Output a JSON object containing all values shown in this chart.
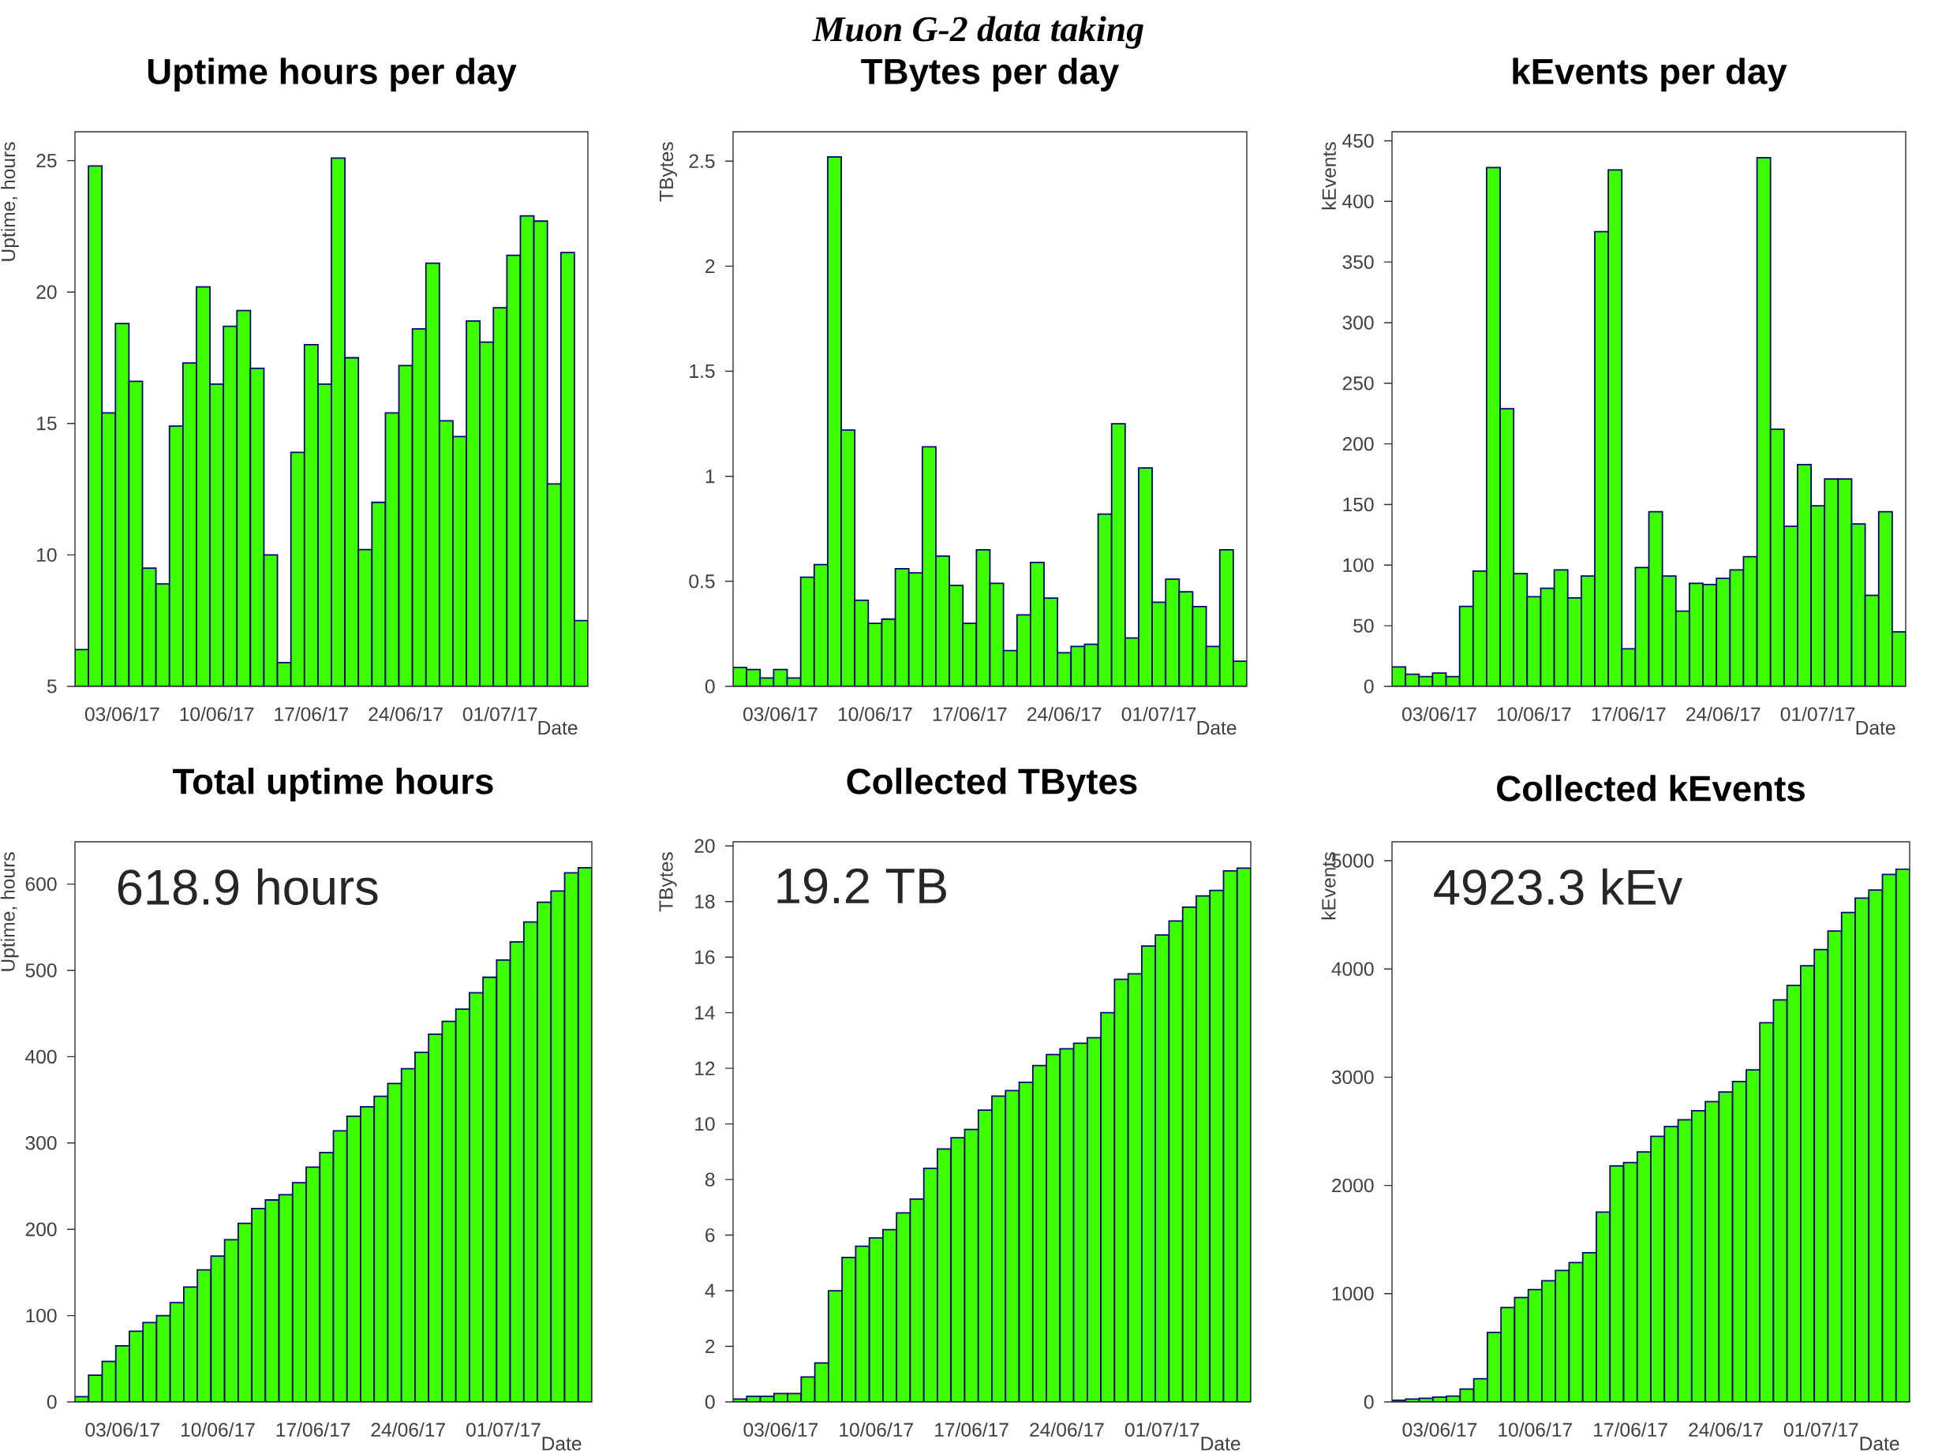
{
  "chart_data": [
    {
      "type": "other",
      "title": "Muon G-2 data taking"
    },
    {
      "type": "bar",
      "title": "Uptime hours per day",
      "xlabel": "Date",
      "ylabel": "Uptime, hours",
      "color": "#3cff00",
      "categories": [
        null,
        null,
        null,
        "03/06/17",
        null,
        null,
        null,
        null,
        null,
        null,
        "10/06/17",
        null,
        null,
        null,
        null,
        null,
        null,
        "17/06/17",
        null,
        null,
        null,
        null,
        null,
        null,
        "24/06/17",
        null,
        null,
        null,
        null,
        null,
        null,
        "01/07/17",
        null,
        null,
        null,
        null,
        null,
        null
      ],
      "values": [
        6.4,
        24.8,
        15.4,
        18.8,
        16.6,
        9.5,
        8.9,
        14.9,
        17.3,
        20.2,
        16.5,
        18.7,
        19.3,
        17.1,
        10.0,
        5.9,
        13.9,
        18.0,
        16.5,
        25.1,
        17.5,
        10.2,
        12.0,
        15.4,
        17.2,
        18.6,
        21.1,
        15.1,
        14.5,
        18.9,
        18.1,
        19.4,
        21.4,
        22.9,
        22.7,
        12.7,
        21.5,
        7.5
      ],
      "ylim": [
        5,
        26.1
      ],
      "yticks": [
        5,
        10,
        15,
        20,
        25
      ]
    },
    {
      "type": "bar",
      "title": "TBytes per day",
      "xlabel": "Date",
      "ylabel": "TBytes",
      "color": "#3cff00",
      "categories": [
        null,
        null,
        null,
        "03/06/17",
        null,
        null,
        null,
        null,
        null,
        null,
        "10/06/17",
        null,
        null,
        null,
        null,
        null,
        null,
        "17/06/17",
        null,
        null,
        null,
        null,
        null,
        null,
        "24/06/17",
        null,
        null,
        null,
        null,
        null,
        null,
        "01/07/17",
        null,
        null,
        null,
        null,
        null,
        null
      ],
      "values": [
        0.09,
        0.08,
        0.04,
        0.08,
        0.04,
        0.52,
        0.58,
        2.52,
        1.22,
        0.41,
        0.3,
        0.32,
        0.56,
        0.54,
        1.14,
        0.62,
        0.48,
        0.3,
        0.65,
        0.49,
        0.17,
        0.34,
        0.59,
        0.42,
        0.16,
        0.19,
        0.2,
        0.82,
        1.25,
        0.23,
        1.04,
        0.4,
        0.51,
        0.45,
        0.38,
        0.19,
        0.65,
        0.12
      ],
      "ylim": [
        0,
        2.64
      ],
      "yticks": [
        0,
        0.5,
        1,
        1.5,
        2,
        2.5
      ]
    },
    {
      "type": "bar",
      "title": "kEvents per day",
      "xlabel": "Date",
      "ylabel": "kEvents",
      "color": "#3cff00",
      "categories": [
        null,
        null,
        null,
        "03/06/17",
        null,
        null,
        null,
        null,
        null,
        null,
        "10/06/17",
        null,
        null,
        null,
        null,
        null,
        null,
        "17/06/17",
        null,
        null,
        null,
        null,
        null,
        null,
        "24/06/17",
        null,
        null,
        null,
        null,
        null,
        null,
        "01/07/17",
        null,
        null,
        null,
        null,
        null,
        null
      ],
      "values": [
        16,
        10,
        8,
        11,
        8,
        66,
        95,
        428,
        229,
        93,
        74,
        81,
        96,
        73,
        91,
        375,
        426,
        31,
        98,
        144,
        91,
        62,
        85,
        84,
        89,
        96,
        107,
        436,
        212,
        132,
        183,
        149,
        171,
        171,
        134,
        75,
        144,
        45
      ],
      "ylim": [
        0,
        457.5
      ],
      "yticks": [
        0,
        50,
        100,
        150,
        200,
        250,
        300,
        350,
        400,
        450
      ]
    },
    {
      "type": "bar",
      "title": "Total uptime hours",
      "xlabel": "Date",
      "ylabel": "Uptime, hours",
      "color": "#3cff00",
      "annotations": [
        "618.9 hours"
      ],
      "categories": [
        null,
        null,
        null,
        "03/06/17",
        null,
        null,
        null,
        null,
        null,
        null,
        "10/06/17",
        null,
        null,
        null,
        null,
        null,
        null,
        "17/06/17",
        null,
        null,
        null,
        null,
        null,
        null,
        "24/06/17",
        null,
        null,
        null,
        null,
        null,
        null,
        "01/07/17",
        null,
        null,
        null,
        null,
        null,
        null
      ],
      "values": [
        6,
        31,
        47,
        65,
        82,
        92,
        100,
        115,
        133,
        153,
        169,
        188,
        207,
        224,
        234,
        240,
        254,
        272,
        289,
        314,
        331,
        342,
        354,
        369,
        386,
        405,
        426,
        441,
        455,
        474,
        492,
        512,
        533,
        556,
        579,
        592,
        613,
        619
      ],
      "ylim": [
        0,
        649
      ],
      "yticks": [
        0,
        100,
        200,
        300,
        400,
        500,
        600
      ]
    },
    {
      "type": "bar",
      "title": "Collected TBytes",
      "xlabel": "Date",
      "ylabel": "TBytes",
      "color": "#3cff00",
      "annotations": [
        "19.2 TB"
      ],
      "categories": [
        null,
        null,
        null,
        "03/06/17",
        null,
        null,
        null,
        null,
        null,
        null,
        "10/06/17",
        null,
        null,
        null,
        null,
        null,
        null,
        "17/06/17",
        null,
        null,
        null,
        null,
        null,
        null,
        "24/06/17",
        null,
        null,
        null,
        null,
        null,
        null,
        "01/07/17",
        null,
        null,
        null,
        null,
        null,
        null
      ],
      "values": [
        0.1,
        0.2,
        0.2,
        0.3,
        0.3,
        0.9,
        1.4,
        4.0,
        5.2,
        5.6,
        5.9,
        6.2,
        6.8,
        7.3,
        8.4,
        9.1,
        9.5,
        9.8,
        10.5,
        11.0,
        11.2,
        11.5,
        12.1,
        12.5,
        12.7,
        12.9,
        13.1,
        14.0,
        15.2,
        15.4,
        16.4,
        16.8,
        17.3,
        17.8,
        18.2,
        18.4,
        19.1,
        19.2
      ],
      "ylim": [
        0,
        20.15
      ],
      "yticks": [
        0,
        2,
        4,
        6,
        8,
        10,
        12,
        14,
        16,
        18,
        20
      ]
    },
    {
      "type": "bar",
      "title": "Collected kEvents",
      "xlabel": "Date",
      "ylabel": "kEvents",
      "color": "#3cff00",
      "annotations": [
        "4923.3 kEv"
      ],
      "categories": [
        null,
        null,
        null,
        "03/06/17",
        null,
        null,
        null,
        null,
        null,
        null,
        "10/06/17",
        null,
        null,
        null,
        null,
        null,
        null,
        "17/06/17",
        null,
        null,
        null,
        null,
        null,
        null,
        "24/06/17",
        null,
        null,
        null,
        null,
        null,
        null,
        "01/07/17",
        null,
        null,
        null,
        null,
        null,
        null
      ],
      "values": [
        16,
        26,
        34,
        45,
        53,
        119,
        214,
        642,
        871,
        964,
        1038,
        1119,
        1215,
        1288,
        1379,
        1754,
        2180,
        2211,
        2309,
        2453,
        2544,
        2606,
        2691,
        2775,
        2864,
        2960,
        3067,
        3503,
        3715,
        3847,
        4030,
        4179,
        4350,
        4521,
        4655,
        4730,
        4874,
        4923
      ],
      "ylim": [
        0,
        5175
      ],
      "yticks": [
        0,
        1000,
        2000,
        3000,
        4000,
        5000
      ]
    }
  ]
}
